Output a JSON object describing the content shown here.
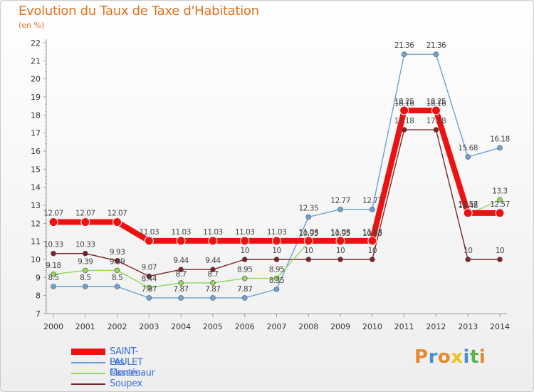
{
  "header": {
    "title": "Evolution du Taux de Taxe d'Habitation",
    "subtitle": "(en %)"
  },
  "brand": {
    "letters": [
      "P",
      "r",
      "o",
      "x",
      "i",
      "t",
      "i"
    ],
    "colors": [
      "#e6892a",
      "#4a8fd6",
      "#e6892a",
      "#f0c020",
      "#4a8fd6",
      "#58b44a",
      "#e6892a"
    ]
  },
  "chart_data": {
    "type": "line",
    "x": [
      2000,
      2001,
      2002,
      2003,
      2004,
      2005,
      2006,
      2007,
      2008,
      2009,
      2010,
      2011,
      2012,
      2013,
      2014
    ],
    "ylim": [
      7,
      22
    ],
    "yticks": [
      7,
      8,
      9,
      10,
      11,
      12,
      13,
      14,
      15,
      16,
      17,
      18,
      19,
      20,
      21,
      22
    ],
    "grid": false,
    "legend_position": "bottom-left",
    "series": [
      {
        "name": "SAINT-PAULET",
        "color": "#ee1111",
        "values": [
          12.07,
          12.07,
          12.07,
          11.03,
          11.03,
          11.03,
          11.03,
          11.03,
          11.03,
          11.03,
          11.03,
          18.25,
          18.25,
          12.57,
          12.57
        ],
        "labels": [
          "12.07",
          "12.07",
          "12.07",
          "11.03",
          "11.03",
          "11.03",
          "11.03",
          "11.03",
          "11.03",
          "11.03",
          "11.03",
          "18.25",
          "18.25",
          "12.57",
          "12.57"
        ]
      },
      {
        "name": "Les Cassés",
        "color": "#6ba3d6",
        "values": [
          8.5,
          8.5,
          8.5,
          7.87,
          7.87,
          7.87,
          7.87,
          8.35,
          12.35,
          12.77,
          12.77,
          21.36,
          21.36,
          15.68,
          16.18
        ],
        "labels": [
          "8.5",
          "8.5",
          "8.5",
          "7.87",
          "7.87",
          "7.87",
          "7.87",
          "8.35",
          "12.35",
          "12.77",
          "12.77",
          "21.36",
          "21.36",
          "15.68",
          "16.18"
        ]
      },
      {
        "name": "Montmaur",
        "color": "#8fd85a",
        "values": [
          9.18,
          9.39,
          9.39,
          8.44,
          8.7,
          8.7,
          8.95,
          8.95,
          10.95,
          10.95,
          10.95,
          18.16,
          18.16,
          12.48,
          13.3
        ],
        "labels": [
          "9.18",
          "9.39",
          "9.39",
          "8.44",
          "8.7",
          "8.7",
          "8.95",
          "8.95",
          "10.95",
          "10.95",
          "10.95",
          "18.16",
          "18.16",
          "12.48",
          "13.3"
        ]
      },
      {
        "name": "Soupex",
        "color": "#7a2424",
        "values": [
          10.33,
          10.33,
          9.93,
          9.07,
          9.44,
          9.44,
          10,
          10,
          10,
          10,
          10,
          17.18,
          17.18,
          10,
          10
        ],
        "labels": [
          "10.33",
          "10.33",
          "9.93",
          "9.07",
          "9.44",
          "9.44",
          "10",
          "10",
          "10",
          "10",
          "10",
          "17.18",
          "17.18",
          "10",
          "10"
        ]
      }
    ]
  }
}
